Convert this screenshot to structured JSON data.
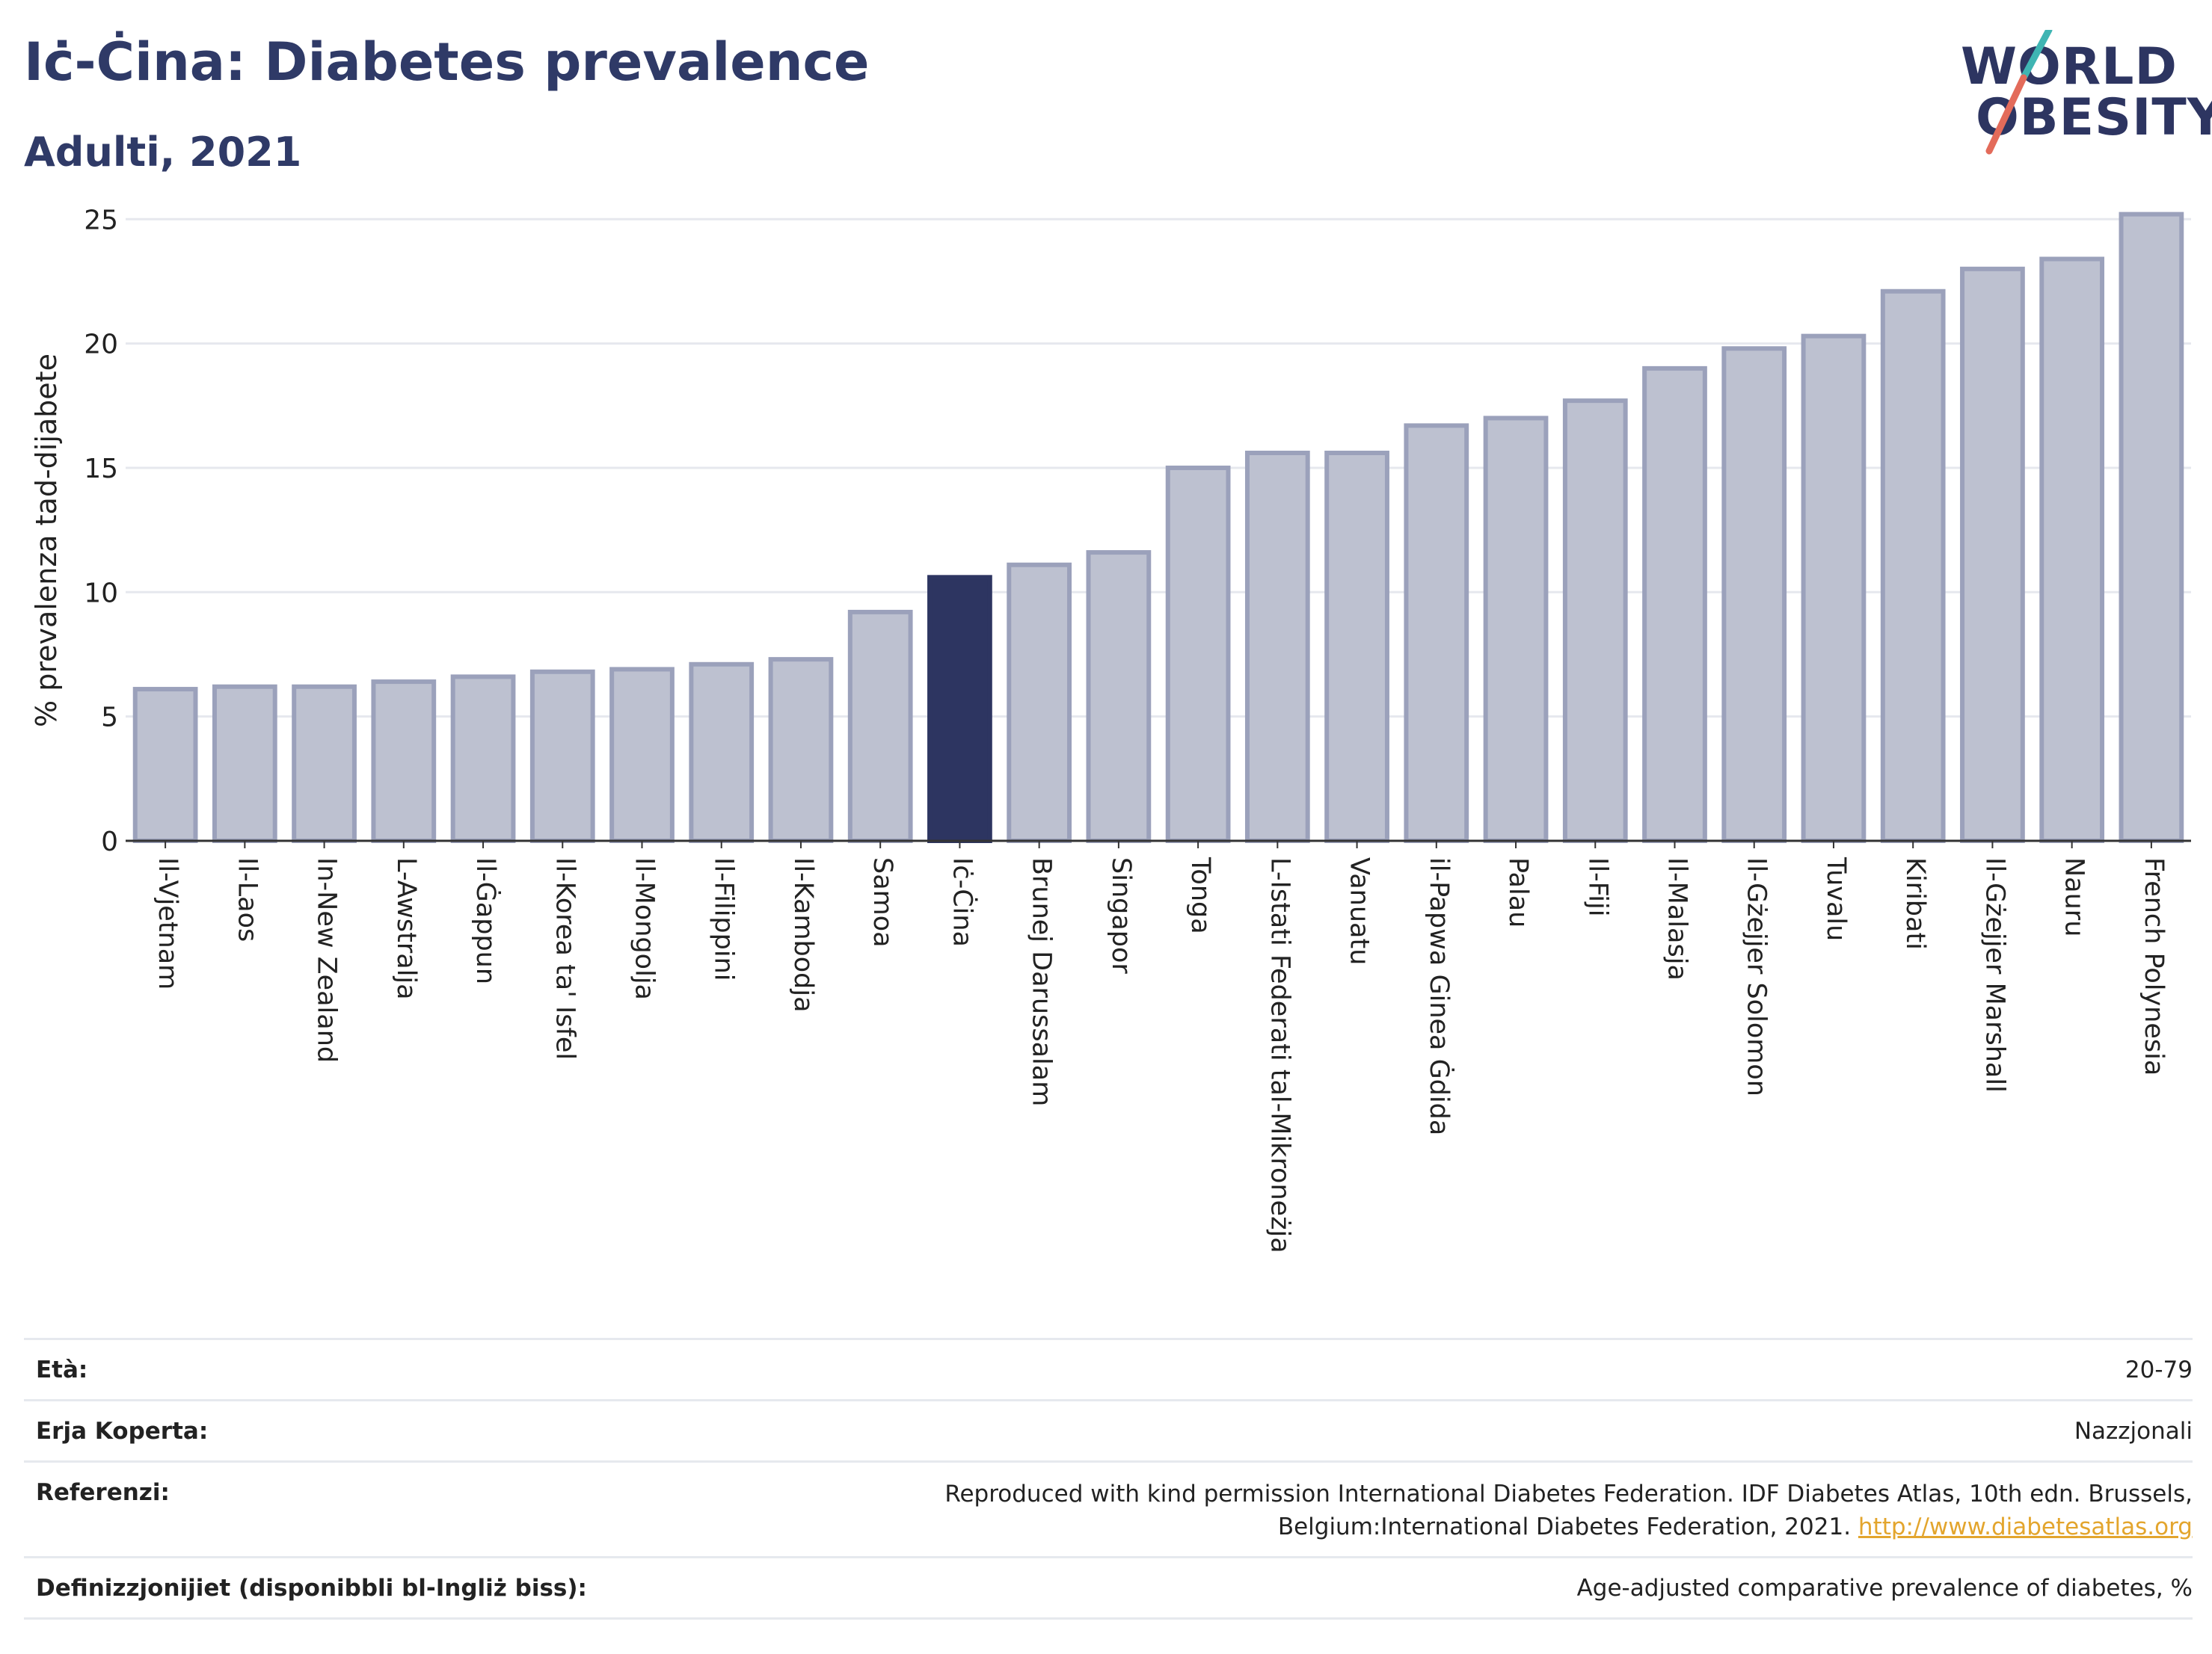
{
  "header": {
    "title": "Iċ-Ċina: Diabetes prevalence",
    "subtitle": "Adulti, 2021"
  },
  "logo": {
    "line1": "WORLD",
    "line2": "OBESITY",
    "accent_teal": "#3fb5b3",
    "accent_coral": "#e36b5a"
  },
  "chart_data": {
    "type": "bar",
    "title": "",
    "ylabel": "% prevalenza tad-dijabete",
    "xlabel": "",
    "ylim": [
      0,
      26
    ],
    "yticks": [
      0,
      5,
      10,
      15,
      20,
      25
    ],
    "grid": true,
    "highlight": "Iċ-Ċina",
    "colors": {
      "bar": "#bdc1d0",
      "bar_edge": "#9ba1bb",
      "highlight": "#2d3561"
    },
    "categories": [
      "Il-Vjetnam",
      "Il-Laos",
      "In-New Zealand",
      "L-Awstralja",
      "Il-Ġappun",
      "Il-Korea ta' Isfel",
      "Il-Mongolja",
      "Il-Filippini",
      "Il-Kambodja",
      "Samoa",
      "Iċ-Ċina",
      "Brunej Darussalam",
      "Singapor",
      "Tonga",
      "L-Istati Federati tal-Mikroneżja",
      "Vanuatu",
      "il-Papwa Ginea Ġdida",
      "Palau",
      "Il-Fiji",
      "Il-Malasja",
      "Il-Gżejjer Solomon",
      "Tuvalu",
      "Kiribati",
      "Il-Gżejjer Marshall",
      "Nauru",
      "French Polynesia"
    ],
    "values": [
      6.1,
      6.2,
      6.2,
      6.4,
      6.6,
      6.8,
      6.9,
      7.1,
      7.3,
      9.2,
      10.6,
      11.1,
      11.6,
      15.0,
      15.6,
      15.6,
      16.7,
      17.0,
      17.7,
      19.0,
      19.8,
      20.3,
      22.1,
      23.0,
      23.4,
      25.2
    ]
  },
  "meta": {
    "rows": [
      {
        "key": "Età:",
        "value": "20-79"
      },
      {
        "key": "Erja Koperta:",
        "value": "Nazzjonali"
      },
      {
        "key": "Referenzi:",
        "value": "Reproduced with kind permission International Diabetes Federation.  IDF Diabetes Atlas, 10th edn. Brussels, Belgium:International Diabetes Federation, 2021.",
        "link": "http://www.diabetesatlas.org"
      },
      {
        "key": "Definizzjonijiet (disponibbli bl-Ingliż biss):",
        "value": "Age-adjusted comparative prevalence of diabetes, %"
      }
    ]
  }
}
